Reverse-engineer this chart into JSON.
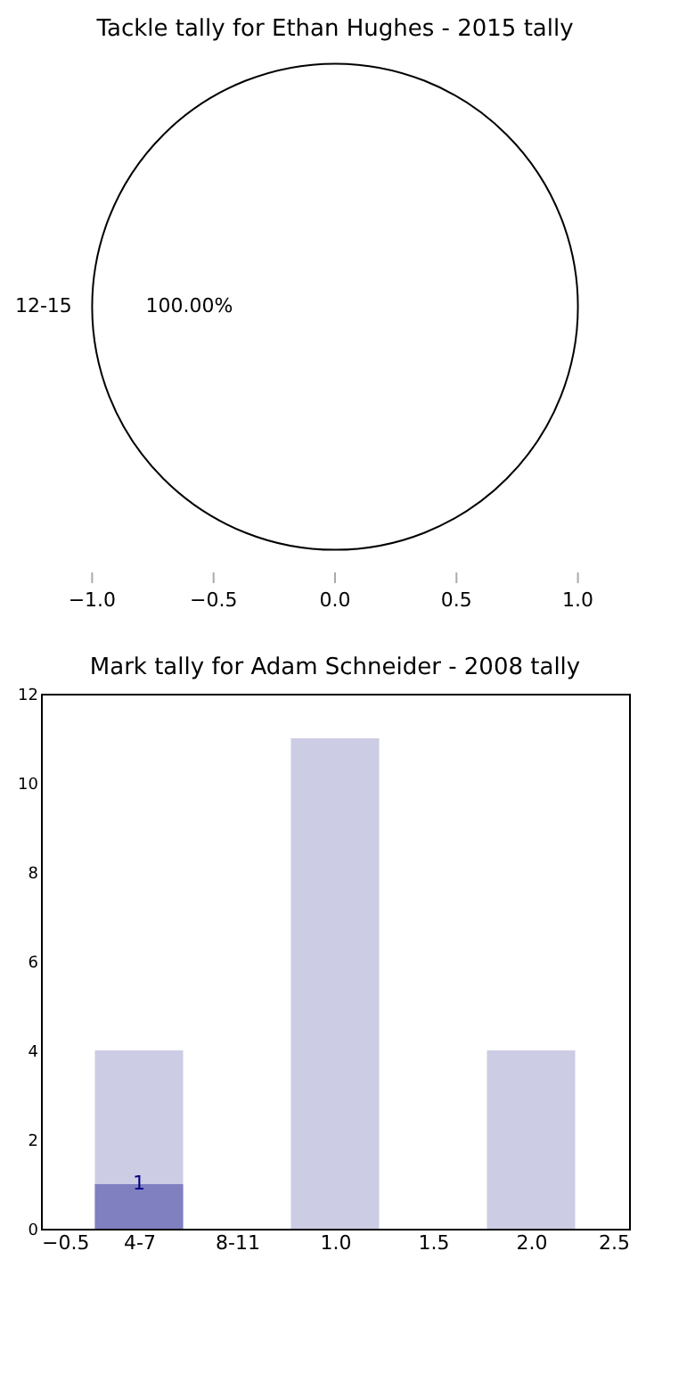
{
  "chart_data": [
    {
      "type": "pie",
      "title": "Tackle tally for Ethan Hughes - 2015 tally",
      "categories": [
        "12-15"
      ],
      "values": [
        100
      ],
      "colors": [
        "#ffffff"
      ],
      "value_labels": [
        "100.00%"
      ],
      "annotations": [
        "−1.0",
        "−0.5",
        "0.0",
        "0.5",
        "1.0"
      ],
      "legend": false
    },
    {
      "type": "bar",
      "title": "Mark tally for Adam Schneider - 2008 tally",
      "x": [
        0,
        1,
        2
      ],
      "series": [
        {
          "color": "#ccccE5",
          "values": [
            4,
            11,
            4
          ]
        },
        {
          "color": "#8080c0",
          "values": [
            1,
            null,
            null
          ],
          "value_labels": [
            "1",
            null,
            null
          ]
        }
      ],
      "xlim": [
        -0.5,
        2.5
      ],
      "xticks": [
        -0.5,
        {
          "value": 0,
          "label": "4-7"
        },
        {
          "value": 0.5,
          "label": "8-11"
        },
        {
          "value": 1,
          "label": "1.0"
        },
        1.5,
        {
          "value": 2,
          "label": "2.0"
        },
        2.5
      ],
      "ylim": [
        0,
        12
      ],
      "yticks": [
        0,
        2,
        4,
        6,
        8,
        10,
        12
      ],
      "grid": false,
      "legend": false
    }
  ]
}
